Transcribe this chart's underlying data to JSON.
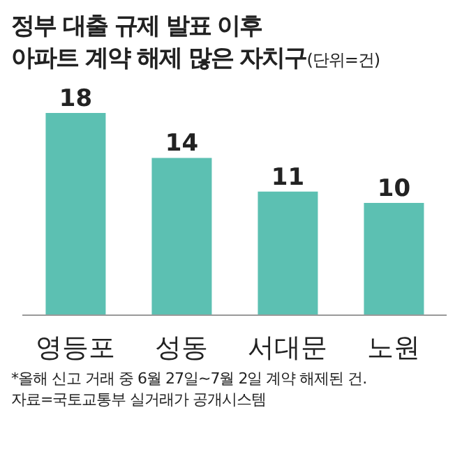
{
  "chart_data": {
    "type": "bar",
    "title": "정부 대출 규제 발표 이후\n아파트 계약 해제 많은 자치구",
    "subtitle": "(단위=건)",
    "categories": [
      "영등포",
      "성동",
      "서대문",
      "노원"
    ],
    "values": [
      18,
      14,
      11,
      10
    ],
    "color": "#5cc0b2",
    "data_labels": true,
    "annotations": [
      "*올해 신고 거래 중 6월 27일~7월 2일 계약 해제된 건.",
      "자료=국토교통부 실거래가 공개시스템"
    ]
  }
}
